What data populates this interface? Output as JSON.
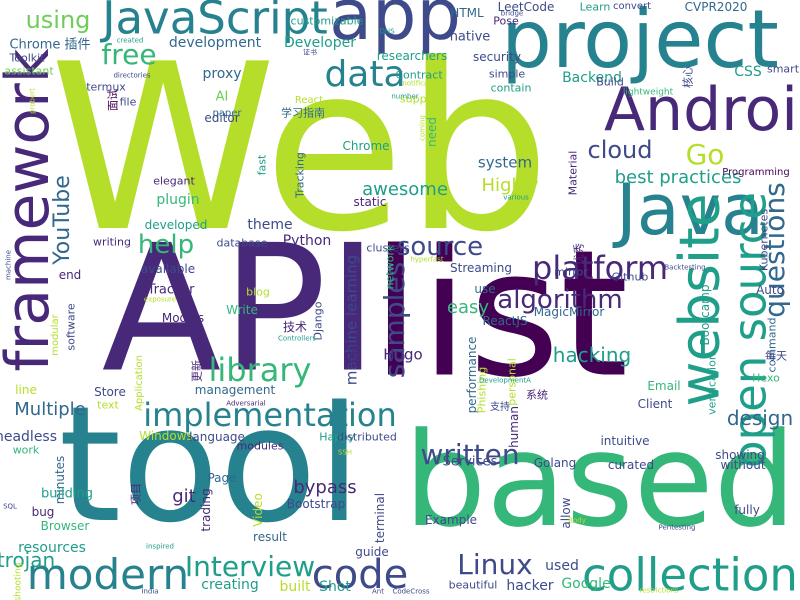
{
  "palette": {
    "lime": "#b5de2b",
    "green": "#6ece58",
    "teal_green": "#35b779",
    "teal": "#1f9e89",
    "blue_teal": "#26828e",
    "blue": "#31688e",
    "indigo": "#3e4a89",
    "purple": "#482878",
    "dark_purple": "#440154"
  },
  "words": [
    {
      "text": "Web",
      "color": "lime"
    },
    {
      "text": "API",
      "color": "purple"
    },
    {
      "text": "list",
      "color": "dark_purple"
    },
    {
      "text": "tool",
      "color": "blue_teal"
    },
    {
      "text": "based",
      "color": "teal_green"
    },
    {
      "text": "project",
      "color": "blue_teal"
    },
    {
      "text": "app",
      "color": "indigo"
    },
    {
      "text": "JavaScript",
      "color": "blue_teal"
    },
    {
      "text": "Java",
      "color": "blue_teal"
    },
    {
      "text": "Android",
      "color": "purple"
    },
    {
      "text": "website",
      "color": "teal"
    },
    {
      "text": "open source",
      "color": "teal"
    },
    {
      "text": "framework",
      "color": "purple"
    },
    {
      "text": "collection",
      "color": "teal"
    },
    {
      "text": "modern",
      "color": "blue_teal"
    },
    {
      "text": "code",
      "color": "indigo"
    },
    {
      "text": "implementation",
      "color": "blue_teal"
    },
    {
      "text": "data",
      "color": "blue_teal"
    },
    {
      "text": "platform",
      "color": "purple"
    },
    {
      "text": "source",
      "color": "indigo"
    },
    {
      "text": "samples",
      "color": "indigo"
    },
    {
      "text": "written",
      "color": "indigo"
    },
    {
      "text": "Linux",
      "color": "indigo"
    },
    {
      "text": "Interview",
      "color": "teal"
    },
    {
      "text": "library",
      "color": "teal_green"
    },
    {
      "text": "questions",
      "color": "blue"
    },
    {
      "text": "algorithm",
      "color": "purple"
    },
    {
      "text": "YouTube",
      "color": "blue"
    },
    {
      "text": "cloud",
      "color": "indigo"
    },
    {
      "text": "Go",
      "color": "lime"
    },
    {
      "text": "free",
      "color": "teal_green"
    },
    {
      "text": "using",
      "color": "green"
    },
    {
      "text": "help",
      "color": "teal_green"
    },
    {
      "text": "design",
      "color": "blue"
    },
    {
      "text": "trojan",
      "color": "teal"
    },
    {
      "text": "hacking",
      "color": "teal"
    },
    {
      "text": "bypass",
      "color": "purple"
    },
    {
      "text": "git",
      "color": "purple"
    },
    {
      "text": "easy",
      "color": "teal_green"
    },
    {
      "text": "Multiple",
      "color": "blue"
    },
    {
      "text": "awesome",
      "color": "teal"
    },
    {
      "text": "best practices",
      "color": "teal"
    },
    {
      "text": "Highly",
      "color": "lime"
    },
    {
      "text": "system",
      "color": "blue"
    },
    {
      "text": "machine learning",
      "color": "indigo"
    },
    {
      "text": "Hugo",
      "color": "purple"
    },
    {
      "text": "creating",
      "color": "teal"
    },
    {
      "text": "built",
      "color": "lime"
    },
    {
      "text": "Shot",
      "color": "teal"
    },
    {
      "text": "hacker",
      "color": "indigo"
    },
    {
      "text": "used",
      "color": "indigo"
    },
    {
      "text": "Google",
      "color": "teal_green"
    },
    {
      "text": "resources",
      "color": "teal"
    },
    {
      "text": "development",
      "color": "blue"
    },
    {
      "text": "Developer",
      "color": "teal"
    },
    {
      "text": "Chrome 插件",
      "color": "blue"
    },
    {
      "text": "plugin",
      "color": "teal_green"
    },
    {
      "text": "theme",
      "color": "indigo"
    },
    {
      "text": "Python",
      "color": "purple"
    },
    {
      "text": "proxy",
      "color": "blue"
    },
    {
      "text": "AI",
      "color": "green"
    },
    {
      "text": "editor",
      "color": "indigo"
    },
    {
      "text": "native",
      "color": "indigo"
    },
    {
      "text": "HTML",
      "color": "blue"
    },
    {
      "text": "LeetCode",
      "color": "indigo"
    },
    {
      "text": "CVPR2020",
      "color": "blue"
    },
    {
      "text": "Backend",
      "color": "teal"
    },
    {
      "text": "CSS",
      "color": "teal"
    },
    {
      "text": "Streaming",
      "color": "indigo"
    },
    {
      "text": "Github",
      "color": "indigo"
    },
    {
      "text": "Kubernetes",
      "color": "indigo"
    },
    {
      "text": "Bootcamp",
      "color": "teal"
    },
    {
      "text": "Auto",
      "color": "indigo"
    },
    {
      "text": "ReactJS",
      "color": "blue"
    },
    {
      "text": "MagicMirror",
      "color": "blue"
    },
    {
      "text": "performance",
      "color": "blue"
    },
    {
      "text": "Services",
      "color": "indigo"
    },
    {
      "text": "Golang",
      "color": "indigo"
    },
    {
      "text": "curated",
      "color": "indigo"
    },
    {
      "text": "intuitive",
      "color": "indigo"
    },
    {
      "text": "showing",
      "color": "indigo"
    },
    {
      "text": "without",
      "color": "indigo"
    },
    {
      "text": "fully",
      "color": "indigo"
    },
    {
      "text": "Client",
      "color": "indigo"
    },
    {
      "text": "Email",
      "color": "teal_green"
    },
    {
      "text": "verification",
      "color": "teal"
    },
    {
      "text": "Hexo",
      "color": "teal_green"
    },
    {
      "text": "command",
      "color": "blue"
    },
    {
      "text": "terminal",
      "color": "indigo"
    },
    {
      "text": "Bootstrap",
      "color": "indigo"
    },
    {
      "text": "trading",
      "color": "purple"
    },
    {
      "text": "Video",
      "color": "lime"
    },
    {
      "text": "result",
      "color": "blue"
    },
    {
      "text": "guide",
      "color": "indigo"
    },
    {
      "text": "beautiful",
      "color": "indigo"
    },
    {
      "text": "Example",
      "color": "indigo"
    },
    {
      "text": "allow",
      "color": "indigo"
    },
    {
      "text": "headless",
      "color": "indigo"
    },
    {
      "text": "work",
      "color": "teal_green"
    },
    {
      "text": "minutes",
      "color": "blue"
    },
    {
      "text": "building",
      "color": "teal"
    },
    {
      "text": "bug",
      "color": "purple"
    },
    {
      "text": "Browser",
      "color": "teal_green"
    },
    {
      "text": "Windows",
      "color": "lime"
    },
    {
      "text": "language",
      "color": "indigo"
    },
    {
      "text": "modules",
      "color": "purple"
    },
    {
      "text": "Happy",
      "color": "teal"
    },
    {
      "text": "distributed",
      "color": "indigo"
    },
    {
      "text": "Page",
      "color": "blue"
    },
    {
      "text": "项目",
      "color": "purple"
    },
    {
      "text": "Models",
      "color": "purple"
    },
    {
      "text": "Tracker",
      "color": "purple"
    },
    {
      "text": "Write",
      "color": "teal_green"
    },
    {
      "text": "blog",
      "color": "lime"
    },
    {
      "text": "技术",
      "color": "purple"
    },
    {
      "text": "Django",
      "color": "indigo"
    },
    {
      "text": "management",
      "color": "blue"
    },
    {
      "text": "Application",
      "color": "lime"
    },
    {
      "text": "Store",
      "color": "indigo"
    },
    {
      "text": "text",
      "color": "lime"
    },
    {
      "text": "line",
      "color": "lime"
    },
    {
      "text": "software",
      "color": "indigo"
    },
    {
      "text": "end",
      "color": "purple"
    },
    {
      "text": "available",
      "color": "indigo"
    },
    {
      "text": "writing",
      "color": "purple"
    },
    {
      "text": "database",
      "color": "indigo"
    },
    {
      "text": "developed",
      "color": "teal"
    },
    {
      "text": "elegant",
      "color": "purple"
    },
    {
      "text": "static",
      "color": "purple"
    },
    {
      "text": "Chrome",
      "color": "teal"
    },
    {
      "text": "need",
      "color": "teal_green"
    },
    {
      "text": "clusters",
      "color": "indigo"
    },
    {
      "text": "network",
      "color": "teal_green"
    },
    {
      "text": "mirror",
      "color": "indigo"
    },
    {
      "text": "use",
      "color": "blue"
    },
    {
      "text": "Build",
      "color": "indigo"
    },
    {
      "text": "lightweight",
      "color": "teal_green"
    },
    {
      "text": "Programming",
      "color": "dark_purple"
    },
    {
      "text": "researchers",
      "color": "teal"
    },
    {
      "text": "security",
      "color": "indigo"
    },
    {
      "text": "simple",
      "color": "indigo"
    },
    {
      "text": "contain",
      "color": "teal"
    },
    {
      "text": "support",
      "color": "lime"
    },
    {
      "text": "Contract",
      "color": "teal"
    },
    {
      "text": "React",
      "color": "lime"
    },
    {
      "text": "学习指南",
      "color": "blue"
    },
    {
      "text": "paper",
      "color": "blue"
    },
    {
      "text": "assistant",
      "color": "green"
    },
    {
      "text": "Toolkit",
      "color": "indigo"
    },
    {
      "text": "termux",
      "color": "indigo"
    },
    {
      "text": "file",
      "color": "indigo"
    },
    {
      "text": "面试",
      "color": "dark_purple"
    },
    {
      "text": "fast",
      "color": "teal"
    },
    {
      "text": "Tracking",
      "color": "blue"
    },
    {
      "text": "customizable",
      "color": "teal"
    },
    {
      "text": "Pose",
      "color": "purple"
    },
    {
      "text": "Learn",
      "color": "teal"
    },
    {
      "text": "convert",
      "color": "indigo"
    },
    {
      "text": "smart",
      "color": "indigo"
    },
    {
      "text": "支持",
      "color": "indigo"
    },
    {
      "text": "human",
      "color": "purple"
    },
    {
      "text": "系统",
      "color": "purple"
    },
    {
      "text": "编程",
      "color": "purple"
    },
    {
      "text": "Material",
      "color": "purple"
    },
    {
      "text": "优秀",
      "color": "purple"
    },
    {
      "text": "更新",
      "color": "purple"
    },
    {
      "text": "Phishing",
      "color": "lime"
    },
    {
      "text": "personal",
      "color": "lime"
    },
    {
      "text": "modular",
      "color": "lime"
    },
    {
      "text": "shooting",
      "color": "lime"
    },
    {
      "text": "created",
      "color": "teal"
    },
    {
      "text": "DNS",
      "color": "teal"
    },
    {
      "text": "number",
      "color": "teal"
    },
    {
      "text": "证书",
      "color": "indigo"
    },
    {
      "text": "directories",
      "color": "indigo"
    },
    {
      "text": "probert",
      "color": "lime"
    },
    {
      "text": "notification",
      "color": "lime"
    },
    {
      "text": "coming",
      "color": "lime"
    },
    {
      "text": "bridge",
      "color": "indigo"
    },
    {
      "text": "various",
      "color": "teal"
    },
    {
      "text": "hyperfast",
      "color": "lime"
    },
    {
      "text": "Backtesting",
      "color": "indigo"
    },
    {
      "text": "machine",
      "color": "indigo"
    },
    {
      "text": "exposure",
      "color": "lime"
    },
    {
      "text": "Controllers",
      "color": "teal"
    },
    {
      "text": "Adversarial",
      "color": "purple"
    },
    {
      "text": "SSH",
      "color": "lime"
    },
    {
      "text": "inspired",
      "color": "teal"
    },
    {
      "text": "SQL",
      "color": "indigo"
    },
    {
      "text": "India",
      "color": "indigo"
    },
    {
      "text": "Ant",
      "color": "indigo"
    },
    {
      "text": "CodeCross",
      "color": "indigo"
    },
    {
      "text": "restrictions",
      "color": "lime"
    },
    {
      "text": "Pentesting",
      "color": "indigo"
    },
    {
      "text": "DevelopmentA",
      "color": "teal"
    },
    {
      "text": "Body",
      "color": "lime"
    },
    {
      "text": "核心",
      "color": "indigo"
    },
    {
      "text": "每天",
      "color": "indigo"
    },
    {
      "text": "js",
      "color": "teal"
    },
    {
      "text": "he",
      "color": "lime"
    }
  ]
}
